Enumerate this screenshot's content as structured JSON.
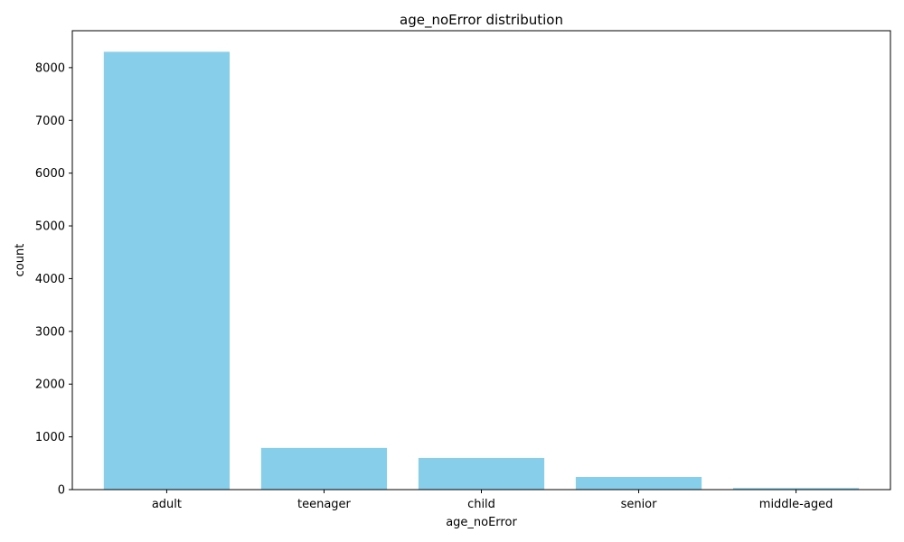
{
  "chart_data": {
    "type": "bar",
    "title": "age_noError distribution",
    "xlabel": "age_noError",
    "ylabel": "count",
    "categories": [
      "adult",
      "teenager",
      "child",
      "senior",
      "middle-aged"
    ],
    "values": [
      8300,
      790,
      600,
      240,
      30
    ],
    "ylim": [
      0,
      8700
    ],
    "yticks": [
      0,
      1000,
      2000,
      3000,
      4000,
      5000,
      6000,
      7000,
      8000
    ],
    "ytick_labels": [
      "0",
      "1000",
      "2000",
      "3000",
      "4000",
      "5000",
      "6000",
      "7000",
      "8000"
    ],
    "bar_color": "#87CEEB",
    "grid": false,
    "legend": false
  }
}
